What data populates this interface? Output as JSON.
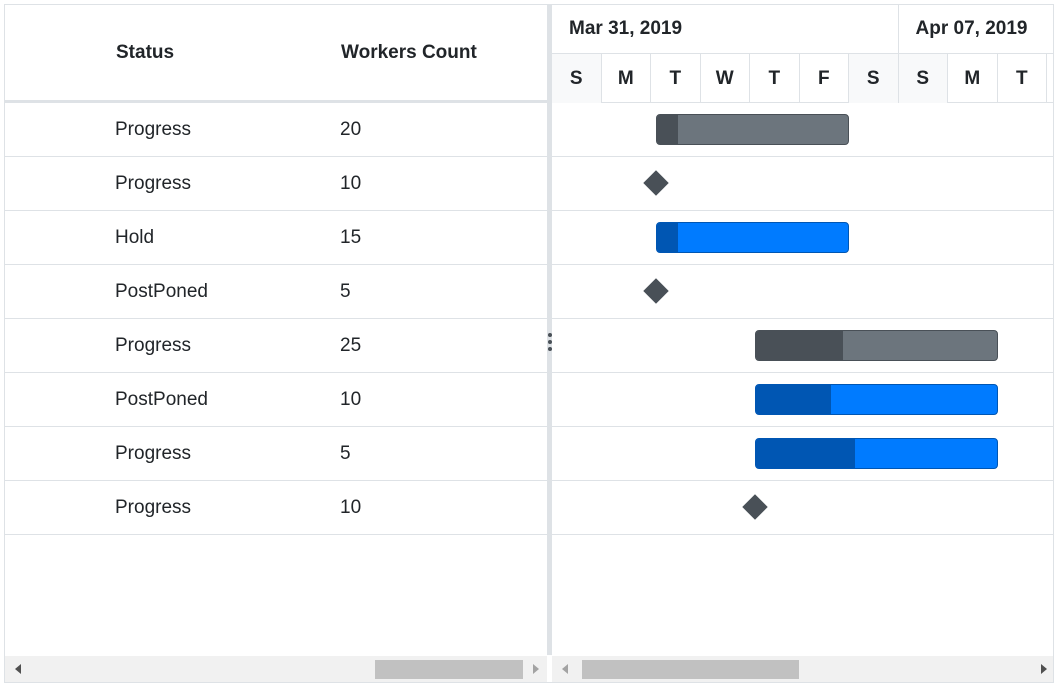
{
  "grid": {
    "columns": {
      "status": "Status",
      "workers": "Workers Count"
    },
    "rows": [
      {
        "status": "Progress",
        "workers": "20"
      },
      {
        "status": "Progress",
        "workers": "10"
      },
      {
        "status": "Hold",
        "workers": "15"
      },
      {
        "status": "PostPoned",
        "workers": "5"
      },
      {
        "status": "Progress",
        "workers": "25"
      },
      {
        "status": "PostPoned",
        "workers": "10"
      },
      {
        "status": "Progress",
        "workers": "5"
      },
      {
        "status": "Progress",
        "workers": "10"
      }
    ]
  },
  "timeline": {
    "weeks": [
      "Mar 31, 2019",
      "Apr 07, 2019"
    ],
    "days": [
      "S",
      "M",
      "T",
      "W",
      "T",
      "F",
      "S",
      "S",
      "M",
      "T"
    ],
    "weekend_indices": [
      0,
      6
    ]
  },
  "tasks": [
    {
      "type": "bar",
      "color": "gray",
      "start_day": 2,
      "duration_days": 4,
      "progress": 0.11
    },
    {
      "type": "milestone",
      "day": 2
    },
    {
      "type": "bar",
      "color": "blue",
      "start_day": 2,
      "duration_days": 4,
      "progress": 0.11
    },
    {
      "type": "milestone",
      "day": 2
    },
    {
      "type": "bar",
      "color": "gray",
      "start_day": 4,
      "duration_days": 5,
      "progress": 0.36
    },
    {
      "type": "bar",
      "color": "blue",
      "start_day": 4,
      "duration_days": 5,
      "progress": 0.31
    },
    {
      "type": "bar",
      "color": "blue",
      "start_day": 4,
      "duration_days": 5,
      "progress": 0.41
    },
    {
      "type": "milestone",
      "day": 4
    }
  ],
  "colors": {
    "bar_gray": "#6c757d",
    "bar_gray_progress": "#495057",
    "bar_blue": "#007bff",
    "bar_blue_progress": "#0056b3",
    "milestone": "#495057"
  },
  "icons": {
    "splitter": "vertical-ellipsis-icon",
    "scroll_left": "triangle-left-icon",
    "scroll_right": "triangle-right-icon"
  }
}
